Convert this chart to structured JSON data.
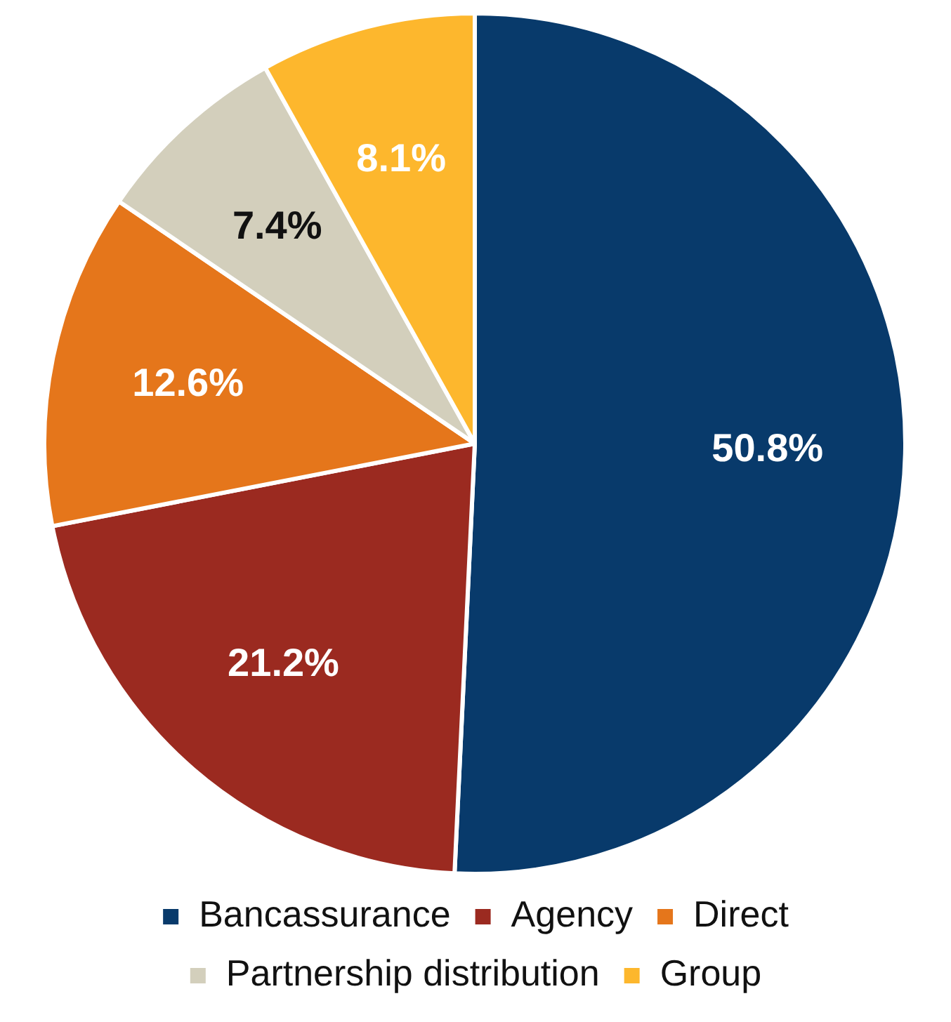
{
  "chart_data": {
    "type": "pie",
    "categories": [
      "Bancassurance",
      "Agency",
      "Direct",
      "Partnership distribution",
      "Group"
    ],
    "values": [
      50.8,
      21.2,
      12.6,
      7.4,
      8.1
    ],
    "colors": [
      "#083a6b",
      "#9b2a20",
      "#e5761b",
      "#d3cfbc",
      "#fdb72d"
    ],
    "value_labels": [
      "50.8%",
      "21.2%",
      "12.6%",
      "7.4%",
      "8.1%"
    ],
    "legend": "bottom"
  }
}
